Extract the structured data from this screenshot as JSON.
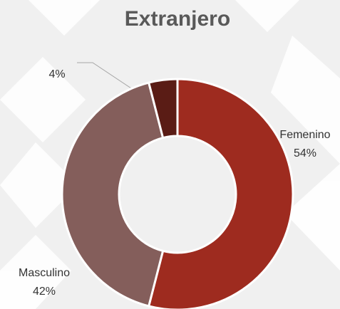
{
  "chart_data": {
    "type": "donut",
    "title": "Extranjero",
    "categories": [
      "Femenino",
      "Masculino",
      null
    ],
    "values": [
      54,
      42,
      4
    ],
    "value_labels": [
      "54%",
      "42%",
      "4%"
    ],
    "colors": [
      "#9e2b1f",
      "#845e5b",
      "#5a1c15"
    ]
  }
}
